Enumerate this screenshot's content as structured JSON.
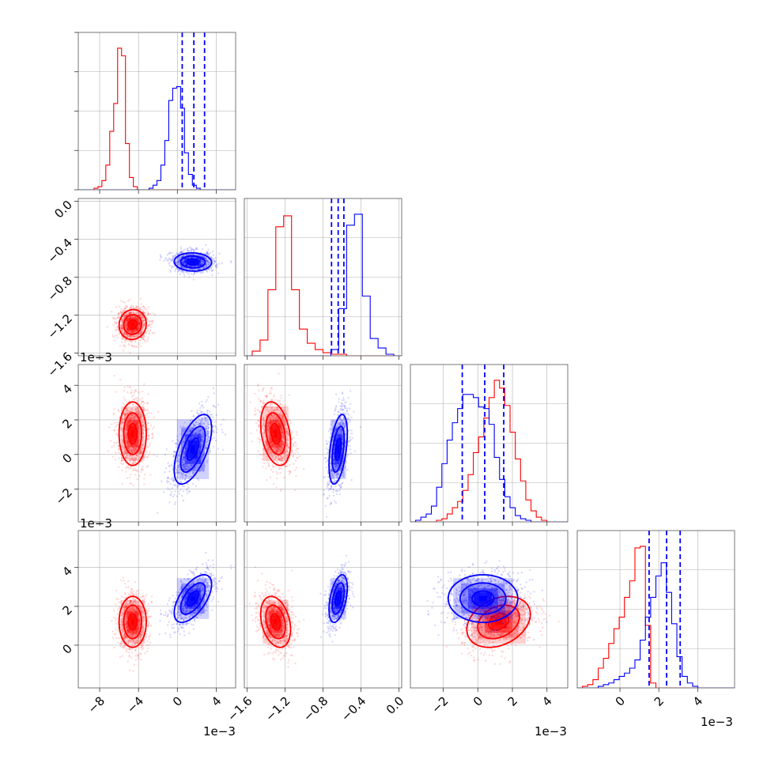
{
  "chart_data": {
    "type": "corner",
    "ticks": {
      "p0": [
        -8,
        -4,
        0,
        4
      ],
      "p1": [
        -1.6,
        -1.2,
        -0.8,
        -0.4,
        0.0
      ],
      "p2": [
        -2,
        0,
        2,
        4
      ],
      "p3": [
        0,
        2,
        4
      ]
    },
    "tick_labels": {
      "p0": [
        "−8",
        "−4",
        "0",
        "4"
      ],
      "p1": [
        "−1.6",
        "−1.2",
        "−0.8",
        "−0.4",
        "0.0"
      ],
      "p1_bottom": [
        "−1.6",
        "−1.2",
        "−0.8",
        "−0.4",
        "0.0"
      ],
      "p2": [
        "−2",
        "0",
        "2",
        "4"
      ],
      "p2_left": [
        "−2",
        "0",
        "2",
        "4"
      ],
      "p3": [
        "0",
        "2",
        "4"
      ],
      "p3_left": [
        "0",
        "2",
        "4"
      ]
    },
    "offset_label": "1e−3",
    "ranges": {
      "p0": [
        -10.2,
        6.0
      ],
      "p1": [
        -1.63,
        0.03
      ],
      "p2": [
        -3.9,
        5.2
      ],
      "p3": [
        -2.2,
        5.9
      ]
    },
    "grid": true,
    "series": [
      {
        "name": "",
        "color": "#ff0000",
        "means": [
          -4.6,
          -1.3,
          1.2,
          1.2
        ],
        "sigmas": [
          0.8,
          0.09,
          1.05,
          0.75
        ],
        "corr": [
          [
            0,
            0.05,
            0.0
          ],
          [
            0.05,
            0,
            -0.3
          ],
          [
            0.0,
            -0.3,
            0.3
          ]
        ],
        "marginals": {
          "p0": {
            "range": [
              -10.2,
              6.0
            ],
            "counts": [
              0,
              0,
              0,
              0,
              1,
              2,
              6,
              16,
              38,
              56,
              92,
              87,
              30,
              8,
              2,
              0,
              0,
              0,
              0,
              0,
              0,
              0,
              0,
              0,
              0,
              0,
              0,
              0,
              0,
              0,
              0,
              0,
              0,
              0,
              0,
              0,
              0,
              0,
              0,
              0
            ]
          },
          "p1": {
            "range": [
              -1.63,
              0.03
            ],
            "counts": [
              0,
              3,
              10,
              42,
              82,
              89,
              42,
              17,
              8,
              4,
              2,
              1,
              1,
              0,
              0,
              0,
              0,
              0,
              0,
              0
            ]
          },
          "p2": {
            "range": [
              -3.9,
              5.2
            ],
            "counts": [
              0,
              0,
              0,
              0,
              0,
              1,
              2,
              5,
              9,
              13,
              20,
              30,
              44,
              54,
              66,
              79,
              90,
              85,
              74,
              57,
              40,
              26,
              14,
              7,
              3,
              1,
              0,
              0,
              0,
              0
            ]
          },
          "p3": {
            "range": [
              -2.2,
              5.9
            ],
            "counts": [
              0,
              1,
              2,
              5,
              12,
              18,
              27,
              36,
              43,
              55,
              65,
              85,
              86,
              38,
              3,
              0,
              0,
              0,
              0,
              0,
              0,
              0,
              0,
              0,
              0,
              0,
              0,
              0,
              0,
              0
            ]
          }
        }
      },
      {
        "name": "",
        "color": "#0000ff",
        "means": [
          1.6,
          -0.64,
          0.3,
          2.4
        ],
        "sigmas": [
          1.1,
          0.055,
          1.15,
          0.7
        ],
        "corr": [
          [
            0,
            -0.05,
            0.6
          ],
          [
            -0.05,
            0,
            0.45
          ],
          [
            0.6,
            0.45,
            0
          ]
        ],
        "quantiles": {
          "p0": [
            0.5,
            1.7,
            2.8
          ],
          "p1": [
            -0.71,
            -0.64,
            -0.58
          ],
          "p2": [
            -0.9,
            0.4,
            1.5
          ],
          "p3": [
            1.5,
            2.4,
            3.1
          ]
        },
        "marginals": {
          "p0": {
            "range": [
              -10.2,
              6.0
            ],
            "counts": [
              0,
              0,
              0,
              0,
              0,
              0,
              0,
              0,
              0,
              0,
              0,
              0,
              0,
              0,
              0,
              0,
              0,
              0,
              1,
              3,
              6,
              16,
              32,
              58,
              66,
              67,
              53,
              24,
              10,
              3,
              1,
              0,
              0,
              0,
              0,
              0,
              0,
              0,
              0,
              0
            ]
          },
          "p1": {
            "range": [
              -1.63,
              0.03
            ],
            "counts": [
              0,
              0,
              0,
              0,
              0,
              0,
              0,
              0,
              0,
              0,
              0,
              4,
              30,
              83,
              90,
              38,
              11,
              5,
              1,
              0
            ]
          },
          "p2": {
            "range": [
              -3.9,
              5.2
            ],
            "counts": [
              0,
              1,
              3,
              5,
              10,
              22,
              37,
              52,
              63,
              72,
              81,
              81,
              79,
              73,
              72,
              62,
              41,
              27,
              16,
              9,
              4,
              2,
              1,
              0,
              0,
              0,
              0,
              0,
              0,
              0
            ]
          },
          "p3": {
            "range": [
              -2.2,
              5.9
            ],
            "counts": [
              0,
              0,
              0,
              0,
              1,
              2,
              3,
              5,
              7,
              9,
              12,
              17,
              29,
              43,
              55,
              68,
              76,
              58,
              39,
              19,
              7,
              3,
              1,
              0,
              0,
              0,
              0,
              0,
              0,
              0
            ]
          }
        }
      }
    ]
  }
}
